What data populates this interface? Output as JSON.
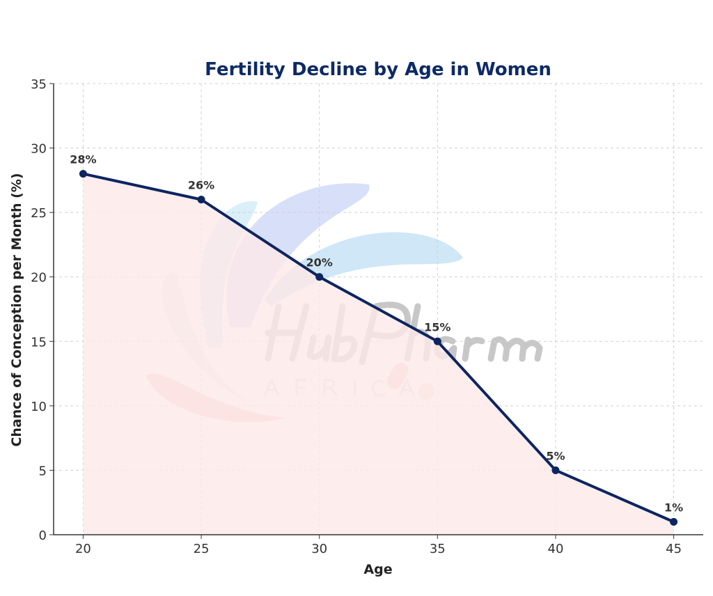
{
  "chart_data": {
    "type": "line",
    "title": "Fertility Decline by Age in Women",
    "xlabel": "Age",
    "ylabel": "Chance of Conception per Month (%)",
    "x": [
      20,
      25,
      30,
      35,
      40,
      45
    ],
    "values": [
      28,
      26,
      20,
      15,
      5,
      1
    ],
    "data_labels": [
      "28%",
      "26%",
      "20%",
      "15%",
      "5%",
      "1%"
    ],
    "xticks": [
      "20",
      "25",
      "30",
      "35",
      "40",
      "45"
    ],
    "yticks": [
      "0",
      "5",
      "10",
      "15",
      "20",
      "25",
      "30",
      "35"
    ],
    "xlim": [
      18.75,
      46.25
    ],
    "ylim": [
      0,
      35
    ],
    "grid": true,
    "area_fill": true,
    "colors": {
      "line": "#0d2461",
      "fill": "#fde8e8",
      "title": "#0d2a66",
      "grid": "#d0d0d0"
    }
  },
  "watermark": {
    "logo_text": "HubPharm",
    "logo_subtext": "AFRICA"
  }
}
